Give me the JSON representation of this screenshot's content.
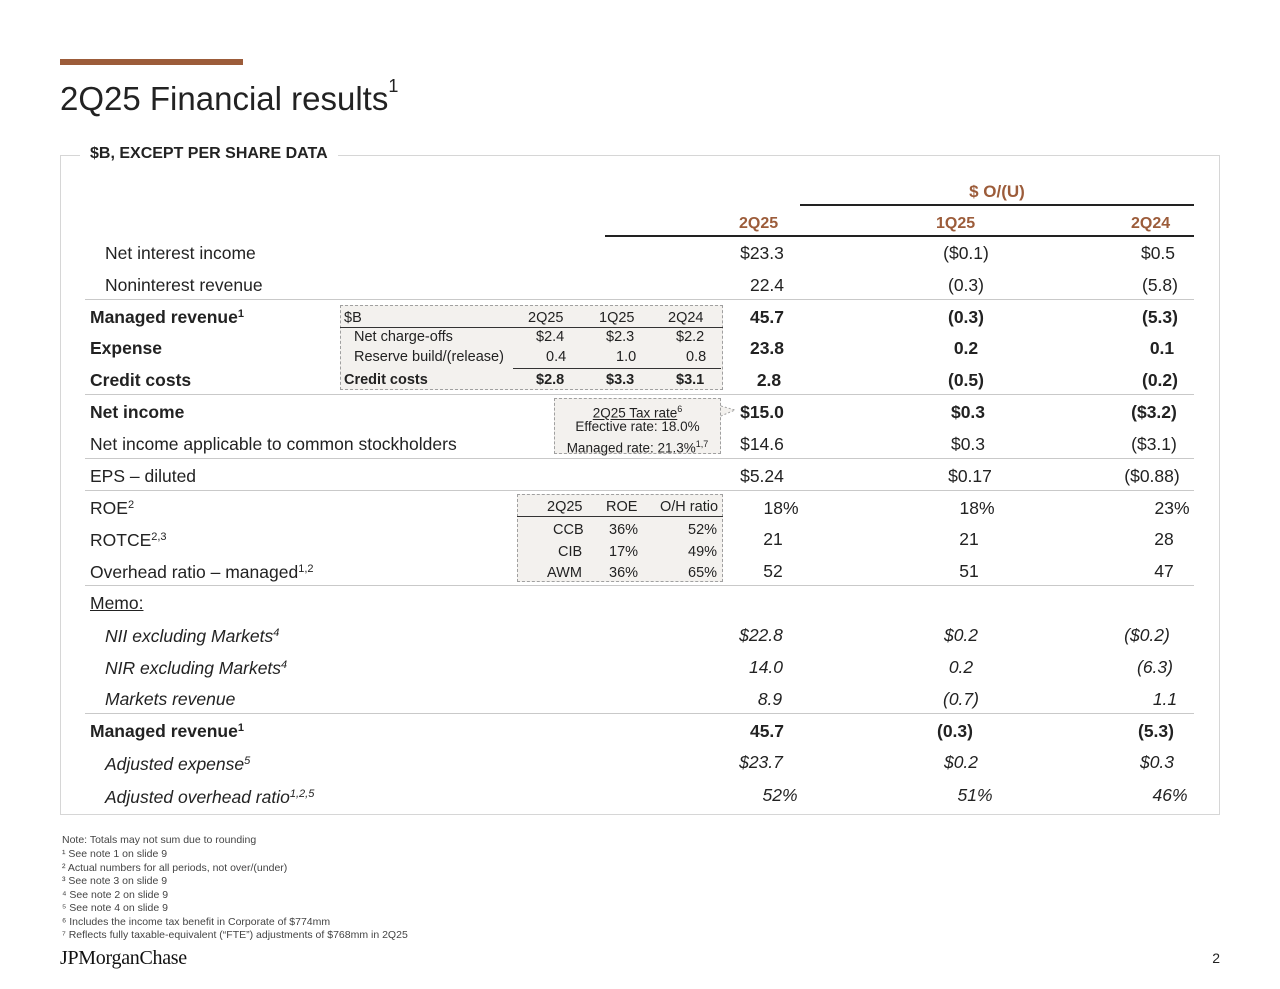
{
  "header": {
    "title": "2Q25 Financial results",
    "title_sup": "1",
    "units_label": "$B, EXCEPT PER SHARE DATA"
  },
  "columns": {
    "ou_label": "$ O/(U)",
    "c1": "2Q25",
    "c2": "1Q25",
    "c3": "2Q24"
  },
  "rows": [
    {
      "label": "Net interest income",
      "sup": "",
      "v1": "$23.3",
      "v2": "($0.1)",
      "v3": "$0.5"
    },
    {
      "label": "Noninterest revenue",
      "sup": "",
      "v1": "22.4",
      "v2": "(0.3)",
      "v3": "(5.8)"
    },
    {
      "label": "Managed revenue",
      "sup": "1",
      "v1": "45.7",
      "v2": "(0.3)",
      "v3": "(5.3)"
    },
    {
      "label": "Expense",
      "sup": "",
      "v1": "23.8",
      "v2": "0.2",
      "v3": "0.1"
    },
    {
      "label": "Credit costs",
      "sup": "",
      "v1": "2.8",
      "v2": "(0.5)",
      "v3": "(0.2)"
    },
    {
      "label": "Net income",
      "sup": "",
      "v1": "$15.0",
      "v2": "$0.3",
      "v3": "($3.2)"
    },
    {
      "label": "Net income applicable to common stockholders",
      "sup": "",
      "v1": "$14.6",
      "v2": "$0.3",
      "v3": "($3.1)"
    },
    {
      "label": "EPS – diluted",
      "sup": "",
      "v1": "$5.24",
      "v2": "$0.17",
      "v3": "($0.88)"
    },
    {
      "label": "ROE",
      "sup": "2",
      "v1": "18%",
      "v2": "18%",
      "v3": "23%"
    },
    {
      "label": "ROTCE",
      "sup": "2,3",
      "v1": "21",
      "v2": "21",
      "v3": "28"
    },
    {
      "label": "Overhead ratio – managed",
      "sup": "1,2",
      "v1": "52",
      "v2": "51",
      "v3": "47"
    }
  ],
  "memo": {
    "label": "Memo:",
    "rows": [
      {
        "label": "NII excluding Markets",
        "sup": "4",
        "v1": "$22.8",
        "v2": "$0.2",
        "v3": "($0.2)"
      },
      {
        "label": "NIR excluding Markets",
        "sup": "4",
        "v1": "14.0",
        "v2": "0.2",
        "v3": "(6.3)"
      },
      {
        "label": "Markets revenue",
        "sup": "",
        "v1": "8.9",
        "v2": "(0.7)",
        "v3": "1.1"
      },
      {
        "label": "Managed revenue",
        "sup": "1",
        "v1": "45.7",
        "v2": "(0.3)",
        "v3": "(5.3)"
      },
      {
        "label": "Adjusted expense",
        "sup": "5",
        "v1": "$23.7",
        "v2": "$0.2",
        "v3": "$0.3"
      },
      {
        "label": "Adjusted overhead ratio",
        "sup": "1,2,5",
        "v1": "52%",
        "v2": "51%",
        "v3": "46%"
      }
    ]
  },
  "credit_inset": {
    "header": {
      "label": "$B",
      "c1": "2Q25",
      "c2": "1Q25",
      "c3": "2Q24"
    },
    "rows": [
      {
        "label": "Net charge-offs",
        "c1": "$2.4",
        "c2": "$2.3",
        "c3": "$2.2"
      },
      {
        "label": "Reserve build/(release)",
        "c1": "0.4",
        "c2": "1.0",
        "c3": "0.8"
      }
    ],
    "total": {
      "label": "Credit costs",
      "c1": "$2.8",
      "c2": "$3.3",
      "c3": "$3.1"
    }
  },
  "tax_inset": {
    "title": "2Q25 Tax rate",
    "title_sup": "6",
    "effective": "Effective rate: 18.0%",
    "managed": "Managed rate: 21.3%",
    "managed_sup": "1,7"
  },
  "roe_inset": {
    "header": {
      "c0": "2Q25",
      "c1": "ROE",
      "c2": "O/H ratio"
    },
    "rows": [
      {
        "seg": "CCB",
        "roe": "36%",
        "oh": "52%"
      },
      {
        "seg": "CIB",
        "roe": "17%",
        "oh": "49%"
      },
      {
        "seg": "AWM",
        "roe": "36%",
        "oh": "65%"
      }
    ]
  },
  "footnotes": [
    "Note: Totals may not sum due to rounding",
    "¹ See note 1 on slide 9",
    "² Actual numbers for all periods, not over/(under)",
    "³ See note 3 on slide 9",
    "⁴ See note 2 on slide 9",
    "⁵ See note 4 on slide 9",
    "⁶ Includes the income tax benefit in Corporate of $774mm",
    "⁷ Reflects fully taxable-equivalent (“FTE”) adjustments of $768mm in 2Q25"
  ],
  "footer": {
    "logo": "JPMorganChase",
    "page": "2"
  }
}
